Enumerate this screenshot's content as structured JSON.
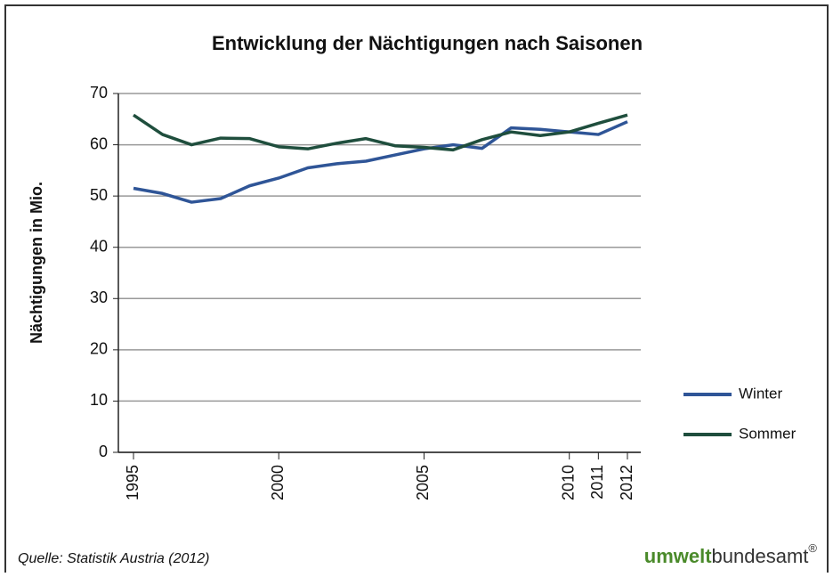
{
  "chart_data": {
    "type": "line",
    "title": "Entwicklung der Nächtigungen nach Saisonen",
    "y_label": "Nächtigungen in Mio.",
    "x": [
      1995,
      1996,
      1997,
      1998,
      1999,
      2000,
      2001,
      2002,
      2003,
      2004,
      2005,
      2006,
      2007,
      2008,
      2009,
      2010,
      2011,
      2012
    ],
    "series": [
      {
        "name": "Winter",
        "color": "#2f5597",
        "values": [
          51.5,
          50.5,
          48.8,
          49.5,
          52,
          53.5,
          55.5,
          56.3,
          56.8,
          58,
          59.2,
          60,
          59.3,
          63.3,
          63,
          62.5,
          62,
          64.5
        ]
      },
      {
        "name": "Sommer",
        "color": "#1f4e3d",
        "values": [
          65.8,
          62,
          60,
          61.3,
          61.2,
          59.6,
          59.2,
          60.3,
          61.2,
          59.8,
          59.5,
          59,
          61,
          62.5,
          61.8,
          62.5,
          64.2,
          65.8
        ]
      }
    ],
    "xlim": [
      1995,
      2012
    ],
    "xticks": [
      1995,
      2000,
      2005,
      2010,
      2011,
      2012
    ],
    "ylim": [
      0,
      70
    ],
    "yticks": [
      0,
      10,
      20,
      30,
      40,
      50,
      60,
      70
    ],
    "grid": true,
    "legend": "right",
    "source": "Quelle: Statistik Austria (2012)",
    "logo": {
      "bold": "umwelt",
      "rest": "bundesamt",
      "mark": "®"
    }
  }
}
